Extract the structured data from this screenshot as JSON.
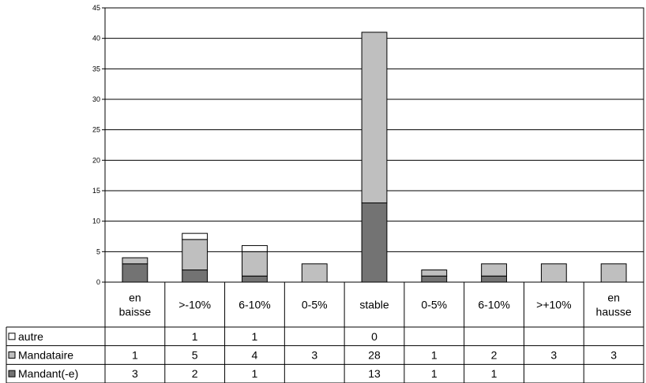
{
  "chart_data": {
    "type": "bar",
    "stacked": true,
    "categories": [
      [
        "en",
        "baisse"
      ],
      [
        ">-10%"
      ],
      [
        "6-10%"
      ],
      [
        "0-5%"
      ],
      [
        "stable"
      ],
      [
        "0-5%"
      ],
      [
        "6-10%"
      ],
      [
        ">+10%"
      ],
      [
        "en",
        "hausse"
      ]
    ],
    "ylim": [
      0,
      45
    ],
    "yticks": [
      0,
      5,
      10,
      15,
      20,
      25,
      30,
      35,
      40,
      45
    ],
    "grid": true,
    "legend": "data-table-left",
    "series": [
      {
        "name": "Mandant(-e)",
        "color": "#737373",
        "values": [
          3,
          2,
          1,
          null,
          13,
          1,
          1,
          null,
          null
        ]
      },
      {
        "name": "Mandataire",
        "color": "#bfbfbf",
        "values": [
          1,
          5,
          4,
          3,
          28,
          1,
          2,
          3,
          3
        ]
      },
      {
        "name": "autre",
        "color": "#ffffff",
        "values": [
          null,
          1,
          1,
          null,
          0,
          null,
          null,
          null,
          null
        ]
      }
    ]
  }
}
